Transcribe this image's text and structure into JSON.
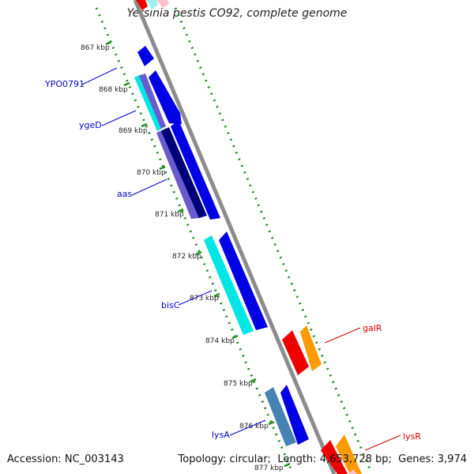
{
  "title": "Yersinia pestis CO92, complete genome",
  "footer": {
    "accession_label": "Accession:",
    "accession": "NC_003143",
    "topology_label": "Topology:",
    "topology": "circular",
    "length_label": "Length:",
    "length": "4,653,728 bp",
    "genes_label": "Genes:",
    "genes": "3,974"
  },
  "ticks": [
    "867 kbp",
    "868 kbp",
    "869 kbp",
    "870 kbp",
    "871 kbp",
    "872 kbp",
    "873 kbp",
    "874 kbp",
    "875 kbp",
    "876 kbp",
    "877 kbp"
  ],
  "gene_labels": [
    {
      "name": "YPO0791",
      "color": "#0000cc"
    },
    {
      "name": "ygeD",
      "color": "#0000cc"
    },
    {
      "name": "aas",
      "color": "#0000cc"
    },
    {
      "name": "bisC",
      "color": "#0000cc"
    },
    {
      "name": "galR",
      "color": "#cc0000"
    },
    {
      "name": "lysA",
      "color": "#0000cc"
    },
    {
      "name": "lysR",
      "color": "#cc0000"
    }
  ],
  "colors": {
    "backbone": "#8c8c8c",
    "tick_dots": "#228b22",
    "blue": "#0000e6",
    "navy": "#00007a",
    "cyan": "#00e5e5",
    "purple": "#6a5acd",
    "steel": "#4682b4",
    "red": "#ee0000",
    "orange": "#ff9900",
    "pink": "#ffc0cb"
  }
}
